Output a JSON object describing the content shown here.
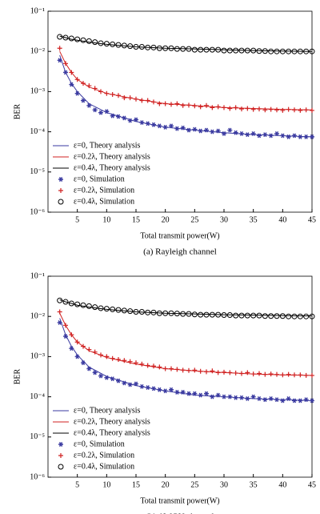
{
  "chart_data": [
    {
      "type": "line",
      "caption": "(a) Rayleigh channel",
      "xlabel": "Total transmit power(W)",
      "ylabel": "BER",
      "xlim": [
        0,
        45
      ],
      "xticks": [
        5,
        10,
        15,
        20,
        25,
        30,
        35,
        40,
        45
      ],
      "ylim": [
        1e-06,
        0.1
      ],
      "log_y": true,
      "legend": "lower left",
      "yticks": [
        {
          "value": 1e-06,
          "label": "10⁻⁶"
        },
        {
          "value": 1e-05,
          "label": "10⁻⁵"
        },
        {
          "value": 0.0001,
          "label": "10⁻⁴"
        },
        {
          "value": 0.001,
          "label": "10⁻³"
        },
        {
          "value": 0.01,
          "label": "10⁻²"
        },
        {
          "value": 0.1,
          "label": "10⁻¹"
        }
      ],
      "series": [
        {
          "name": "ε=0, Theory analysis",
          "color": "#3a3aa0",
          "style": "line",
          "x": [
            2,
            3,
            4,
            5,
            7,
            10,
            15,
            20,
            25,
            30,
            35,
            40,
            45
          ],
          "values": [
            0.008,
            0.003,
            0.0016,
            0.001,
            0.0005,
            0.0003,
            0.00018,
            0.00013,
            0.00011,
            9.5e-05,
            8.5e-05,
            8e-05,
            7.5e-05
          ]
        },
        {
          "name": "ε=0.2λ, Theory analysis",
          "color": "#d02020",
          "style": "line",
          "x": [
            2,
            3,
            4,
            5,
            7,
            10,
            15,
            20,
            25,
            30,
            35,
            40,
            45
          ],
          "values": [
            0.01,
            0.005,
            0.003,
            0.002,
            0.0013,
            0.0009,
            0.00065,
            0.0005,
            0.00045,
            0.0004,
            0.00038,
            0.00036,
            0.00035
          ]
        },
        {
          "name": "ε=0.4λ, Theory analysis",
          "color": "#000000",
          "style": "line",
          "x": [
            2,
            3,
            4,
            5,
            7,
            10,
            15,
            20,
            25,
            30,
            35,
            40,
            45
          ],
          "values": [
            0.024,
            0.022,
            0.02,
            0.019,
            0.017,
            0.015,
            0.013,
            0.012,
            0.0115,
            0.011,
            0.0105,
            0.0102,
            0.01
          ]
        },
        {
          "name": "ε=0, Simulation",
          "color": "#3a3aa0",
          "style": "star",
          "x": [
            2,
            3,
            4,
            5,
            6,
            7,
            8,
            9,
            10,
            11,
            12,
            13,
            14,
            15,
            16,
            17,
            18,
            19,
            20,
            21,
            22,
            23,
            24,
            25,
            26,
            27,
            28,
            29,
            30,
            31,
            32,
            33,
            34,
            35,
            36,
            37,
            38,
            39,
            40,
            41,
            42,
            43,
            44,
            45
          ],
          "values": [
            0.006,
            0.003,
            0.0015,
            0.0009,
            0.0006,
            0.00045,
            0.00035,
            0.0003,
            0.00032,
            0.00025,
            0.00024,
            0.00022,
            0.00019,
            0.0002,
            0.00017,
            0.00016,
            0.00015,
            0.00014,
            0.00013,
            0.00014,
            0.00012,
            0.000125,
            0.00011,
            0.000115,
            0.000105,
            0.00011,
            0.0001,
            0.000105,
            9e-05,
            0.00011,
            9.5e-05,
            9e-05,
            8.5e-05,
            9e-05,
            8e-05,
            8.5e-05,
            8e-05,
            9e-05,
            8e-05,
            7.5e-05,
            8e-05,
            7.5e-05,
            7.5e-05,
            7.5e-05
          ]
        },
        {
          "name": "ε=0.2λ, Simulation",
          "color": "#d02020",
          "style": "plus",
          "x": [
            2,
            3,
            4,
            5,
            6,
            7,
            8,
            9,
            10,
            11,
            12,
            13,
            14,
            15,
            16,
            17,
            18,
            19,
            20,
            21,
            22,
            23,
            24,
            25,
            26,
            27,
            28,
            29,
            30,
            31,
            32,
            33,
            34,
            35,
            36,
            37,
            38,
            39,
            40,
            41,
            42,
            43,
            44,
            45
          ],
          "values": [
            0.012,
            0.005,
            0.003,
            0.002,
            0.0016,
            0.0014,
            0.0012,
            0.001,
            0.0009,
            0.00085,
            0.0008,
            0.0007,
            0.0007,
            0.00065,
            0.0006,
            0.0006,
            0.00055,
            0.0005,
            0.0005,
            0.00048,
            0.0005,
            0.00045,
            0.00046,
            0.00044,
            0.00042,
            0.00045,
            0.0004,
            0.00042,
            0.0004,
            0.00038,
            0.0004,
            0.00037,
            0.00038,
            0.00036,
            0.00037,
            0.00035,
            0.00036,
            0.00035,
            0.00034,
            0.00036,
            0.00035,
            0.00034,
            0.00035,
            0.00034
          ]
        },
        {
          "name": "ε=0.4λ, Simulation",
          "color": "#000000",
          "style": "circle",
          "x": [
            2,
            3,
            4,
            5,
            6,
            7,
            8,
            9,
            10,
            11,
            12,
            13,
            14,
            15,
            16,
            17,
            18,
            19,
            20,
            21,
            22,
            23,
            24,
            25,
            26,
            27,
            28,
            29,
            30,
            31,
            32,
            33,
            34,
            35,
            36,
            37,
            38,
            39,
            40,
            41,
            42,
            43,
            44,
            45
          ],
          "values": [
            0.023,
            0.022,
            0.021,
            0.02,
            0.019,
            0.018,
            0.017,
            0.016,
            0.0155,
            0.015,
            0.0145,
            0.014,
            0.0135,
            0.013,
            0.013,
            0.0125,
            0.0125,
            0.012,
            0.012,
            0.012,
            0.0115,
            0.0115,
            0.0115,
            0.011,
            0.011,
            0.011,
            0.011,
            0.011,
            0.0105,
            0.0105,
            0.0105,
            0.0105,
            0.0105,
            0.0105,
            0.0102,
            0.0102,
            0.01,
            0.01,
            0.01,
            0.01,
            0.01,
            0.01,
            0.01,
            0.01
          ]
        }
      ]
    },
    {
      "type": "line",
      "caption": "(b) AWGN channel",
      "xlabel": "Total transmit power(W)",
      "ylabel": "BER",
      "xlim": [
        0,
        45
      ],
      "xticks": [
        5,
        10,
        15,
        20,
        25,
        30,
        35,
        40,
        45
      ],
      "ylim": [
        1e-06,
        0.1
      ],
      "log_y": true,
      "legend": "lower left",
      "yticks": [
        {
          "value": 1e-06,
          "label": "10⁻⁶"
        },
        {
          "value": 1e-05,
          "label": "10⁻⁵"
        },
        {
          "value": 0.0001,
          "label": "10⁻⁴"
        },
        {
          "value": 0.001,
          "label": "10⁻³"
        },
        {
          "value": 0.01,
          "label": "10⁻²"
        },
        {
          "value": 0.1,
          "label": "10⁻¹"
        }
      ],
      "series": [
        {
          "name": "ε=0, Theory analysis",
          "color": "#3a3aa0",
          "style": "line",
          "x": [
            2,
            3,
            4,
            5,
            7,
            10,
            15,
            20,
            25,
            30,
            35,
            40,
            45
          ],
          "values": [
            0.009,
            0.0035,
            0.0018,
            0.0011,
            0.00055,
            0.00032,
            0.00019,
            0.00014,
            0.00011,
            0.0001,
            9e-05,
            8.5e-05,
            8e-05
          ]
        },
        {
          "name": "ε=0.2λ, Theory analysis",
          "color": "#d02020",
          "style": "line",
          "x": [
            2,
            3,
            4,
            5,
            7,
            10,
            15,
            20,
            25,
            30,
            35,
            40,
            45
          ],
          "values": [
            0.012,
            0.006,
            0.0035,
            0.0023,
            0.0014,
            0.00095,
            0.00065,
            0.0005,
            0.00044,
            0.0004,
            0.00037,
            0.00035,
            0.00034
          ]
        },
        {
          "name": "ε=0.4λ, Theory analysis",
          "color": "#000000",
          "style": "line",
          "x": [
            2,
            3,
            4,
            5,
            7,
            10,
            15,
            20,
            25,
            30,
            35,
            40,
            45
          ],
          "values": [
            0.026,
            0.023,
            0.021,
            0.019,
            0.017,
            0.015,
            0.013,
            0.012,
            0.0115,
            0.011,
            0.0108,
            0.0105,
            0.0103
          ]
        },
        {
          "name": "ε=0, Simulation",
          "color": "#3a3aa0",
          "style": "star",
          "x": [
            2,
            3,
            4,
            5,
            6,
            7,
            8,
            9,
            10,
            11,
            12,
            13,
            14,
            15,
            16,
            17,
            18,
            19,
            20,
            21,
            22,
            23,
            24,
            25,
            26,
            27,
            28,
            29,
            30,
            31,
            32,
            33,
            34,
            35,
            36,
            37,
            38,
            39,
            40,
            41,
            42,
            43,
            44,
            45
          ],
          "values": [
            0.007,
            0.0032,
            0.0016,
            0.001,
            0.0007,
            0.0005,
            0.0004,
            0.00033,
            0.0003,
            0.00028,
            0.00025,
            0.00022,
            0.0002,
            0.00021,
            0.00018,
            0.00017,
            0.00016,
            0.00015,
            0.00014,
            0.00015,
            0.00013,
            0.00013,
            0.00012,
            0.00012,
            0.00011,
            0.00012,
            0.0001,
            0.00011,
            0.0001,
            0.0001,
            9.5e-05,
            9.5e-05,
            9e-05,
            0.0001,
            9e-05,
            8.5e-05,
            9e-05,
            8.5e-05,
            8e-05,
            9e-05,
            8e-05,
            8e-05,
            8.5e-05,
            8e-05
          ]
        },
        {
          "name": "ε=0.2λ, Simulation",
          "color": "#d02020",
          "style": "plus",
          "x": [
            2,
            3,
            4,
            5,
            6,
            7,
            8,
            9,
            10,
            11,
            12,
            13,
            14,
            15,
            16,
            17,
            18,
            19,
            20,
            21,
            22,
            23,
            24,
            25,
            26,
            27,
            28,
            29,
            30,
            31,
            32,
            33,
            34,
            35,
            36,
            37,
            38,
            39,
            40,
            41,
            42,
            43,
            44,
            45
          ],
          "values": [
            0.013,
            0.006,
            0.0035,
            0.0023,
            0.0018,
            0.0015,
            0.0013,
            0.0011,
            0.001,
            0.0009,
            0.00085,
            0.0008,
            0.00075,
            0.0007,
            0.00065,
            0.0006,
            0.00058,
            0.00055,
            0.0005,
            0.0005,
            0.00048,
            0.00046,
            0.00045,
            0.00046,
            0.00043,
            0.00042,
            0.00044,
            0.0004,
            0.00041,
            0.0004,
            0.00039,
            0.00038,
            0.0004,
            0.00037,
            0.00038,
            0.00036,
            0.00037,
            0.00036,
            0.00035,
            0.00036,
            0.00035,
            0.00035,
            0.00034,
            0.00034
          ]
        },
        {
          "name": "ε=0.4λ, Simulation",
          "color": "#000000",
          "style": "circle",
          "x": [
            2,
            3,
            4,
            5,
            6,
            7,
            8,
            9,
            10,
            11,
            12,
            13,
            14,
            15,
            16,
            17,
            18,
            19,
            20,
            21,
            22,
            23,
            24,
            25,
            26,
            27,
            28,
            29,
            30,
            31,
            32,
            33,
            34,
            35,
            36,
            37,
            38,
            39,
            40,
            41,
            42,
            43,
            44,
            45
          ],
          "values": [
            0.025,
            0.023,
            0.021,
            0.02,
            0.019,
            0.018,
            0.017,
            0.016,
            0.0155,
            0.015,
            0.0145,
            0.014,
            0.0135,
            0.013,
            0.013,
            0.0125,
            0.0125,
            0.012,
            0.012,
            0.012,
            0.0118,
            0.0115,
            0.0115,
            0.0112,
            0.011,
            0.011,
            0.011,
            0.011,
            0.0108,
            0.0108,
            0.0105,
            0.0105,
            0.0105,
            0.0105,
            0.0105,
            0.0102,
            0.0102,
            0.0102,
            0.0102,
            0.01,
            0.01,
            0.01,
            0.01,
            0.01
          ]
        }
      ]
    }
  ]
}
